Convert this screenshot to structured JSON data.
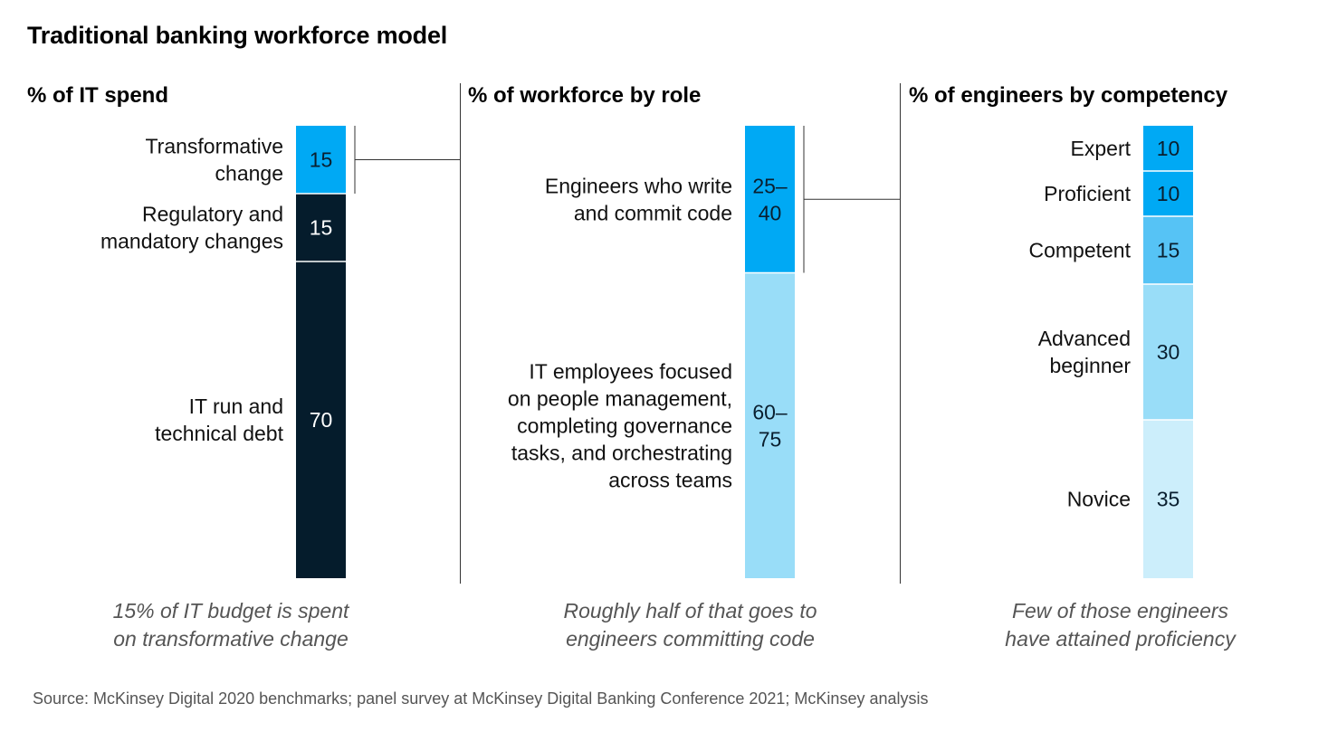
{
  "title": "Traditional banking workforce model",
  "source": "Source: McKinsey Digital 2020 benchmarks; panel survey at McKinsey Digital Banking Conference 2021; McKinsey analysis",
  "chart_data": [
    {
      "type": "bar",
      "title": "% of IT spend",
      "stacked": true,
      "caption": [
        "15% of IT budget is spent",
        "on transformative change"
      ],
      "segments": [
        {
          "label": [
            "Transformative",
            "change"
          ],
          "value": 15,
          "display": [
            "15"
          ],
          "color": "#00A9F4",
          "text_color": "#0a1f2f"
        },
        {
          "label": [
            "Regulatory and",
            "mandatory changes"
          ],
          "value": 15,
          "display": [
            "15"
          ],
          "color": "#051c2c",
          "text_color": "#ffffff"
        },
        {
          "label": [
            "IT run and",
            "technical debt"
          ],
          "value": 70,
          "display": [
            "70"
          ],
          "color": "#051c2c",
          "text_color": "#ffffff"
        }
      ]
    },
    {
      "type": "bar",
      "title": "% of workforce by role",
      "stacked": true,
      "caption": [
        "Roughly half of that goes to",
        "engineers committing code"
      ],
      "segments": [
        {
          "label": [
            "Engineers who write",
            "and commit code"
          ],
          "value_range": [
            25,
            40
          ],
          "display": [
            "25–",
            "40"
          ],
          "color": "#00A9F4",
          "text_color": "#0a1f2f"
        },
        {
          "label": [
            "IT employees focused",
            "on people management,",
            "completing governance",
            "tasks, and orchestrating",
            "across teams"
          ],
          "value_range": [
            60,
            75
          ],
          "display": [
            "60–",
            "75"
          ],
          "color": "#99DDF8",
          "text_color": "#0a1f2f"
        }
      ]
    },
    {
      "type": "bar",
      "title": "% of engineers by competency",
      "stacked": true,
      "caption": [
        "Few of those engineers",
        "have attained proficiency"
      ],
      "segments": [
        {
          "label": [
            "Expert"
          ],
          "value": 10,
          "display": [
            "10"
          ],
          "color": "#00A9F4",
          "text_color": "#0a1f2f"
        },
        {
          "label": [
            "Proficient"
          ],
          "value": 10,
          "display": [
            "10"
          ],
          "color": "#00A9F4",
          "text_color": "#0a1f2f"
        },
        {
          "label": [
            "Competent"
          ],
          "value": 15,
          "display": [
            "15"
          ],
          "color": "#56C3F5",
          "text_color": "#0a1f2f"
        },
        {
          "label": [
            "Advanced",
            "beginner"
          ],
          "value": 30,
          "display": [
            "30"
          ],
          "color": "#99DDF8",
          "text_color": "#0a1f2f"
        },
        {
          "label": [
            "Novice"
          ],
          "value": 35,
          "display": [
            "35"
          ],
          "color": "#CCEEFB",
          "text_color": "#0a1f2f"
        }
      ]
    }
  ]
}
